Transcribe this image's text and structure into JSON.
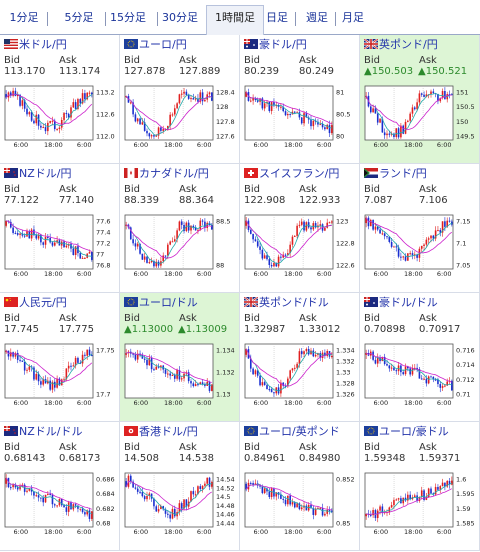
{
  "tabs": [
    {
      "label": "1分足",
      "active": false
    },
    {
      "label": "5分足",
      "active": false
    },
    {
      "label": "15分足",
      "active": false
    },
    {
      "label": "30分足",
      "active": false
    },
    {
      "label": "1時間足",
      "active": true
    },
    {
      "label": "日足",
      "active": false
    },
    {
      "label": "週足",
      "active": false
    },
    {
      "label": "月足",
      "active": false
    }
  ],
  "labels": {
    "bid": "Bid",
    "ask": "Ask"
  },
  "x_ticks": [
    "6:00",
    "18:00",
    "6:00"
  ],
  "pairs": [
    {
      "name": "米ドル/円",
      "flag": "us",
      "bid": "113.170",
      "ask": "113.174",
      "trend": "",
      "highlight": false,
      "y_ticks": [
        "113.2",
        "112.6",
        "112.0"
      ],
      "seed": 3,
      "shape": "dipmid"
    },
    {
      "name": "ユーロ/円",
      "flag": "eu",
      "bid": "127.878",
      "ask": "127.889",
      "trend": "",
      "highlight": false,
      "y_ticks": [
        "128.4",
        "128",
        "127.8",
        "127.6"
      ],
      "seed": 7,
      "shape": "vshape"
    },
    {
      "name": "豪ドル/円",
      "flag": "au",
      "bid": "80.239",
      "ask": "80.249",
      "trend": "",
      "highlight": false,
      "y_ticks": [
        "81",
        "80.5",
        "80"
      ],
      "seed": 11,
      "shape": "down"
    },
    {
      "name": "英ポンド/円",
      "flag": "gb",
      "bid": "150.503",
      "ask": "150.521",
      "trend": "up",
      "highlight": true,
      "y_ticks": [
        "151",
        "150.5",
        "150",
        "149.5"
      ],
      "seed": 13,
      "shape": "vshape"
    },
    {
      "name": "NZドル/円",
      "flag": "nz",
      "bid": "77.122",
      "ask": "77.140",
      "trend": "",
      "highlight": false,
      "y_ticks": [
        "77.6",
        "77.4",
        "77.2",
        "77",
        "76.8"
      ],
      "seed": 17,
      "shape": "down"
    },
    {
      "name": "カナダドル/円",
      "flag": "ca",
      "bid": "88.339",
      "ask": "88.364",
      "trend": "",
      "highlight": false,
      "y_ticks": [
        "88.5",
        "88"
      ],
      "seed": 19,
      "shape": "vshape"
    },
    {
      "name": "スイスフラン/円",
      "flag": "ch",
      "bid": "122.908",
      "ask": "122.933",
      "trend": "",
      "highlight": false,
      "y_ticks": [
        "123",
        "122.8",
        "122.6"
      ],
      "seed": 23,
      "shape": "vshape"
    },
    {
      "name": "ランド/円",
      "flag": "za",
      "bid": "7.087",
      "ask": "7.106",
      "trend": "",
      "highlight": false,
      "y_ticks": [
        "7.15",
        "7.1",
        "7.05"
      ],
      "seed": 29,
      "shape": "dipmid"
    },
    {
      "name": "人民元/円",
      "flag": "cn",
      "bid": "17.745",
      "ask": "17.775",
      "trend": "",
      "highlight": false,
      "y_ticks": [
        "17.75",
        "17.7"
      ],
      "seed": 31,
      "shape": "dipmid"
    },
    {
      "name": "ユーロ/ドル",
      "flag": "eu",
      "bid": "1.13000",
      "ask": "1.13009",
      "trend": "up",
      "highlight": true,
      "y_ticks": [
        "1.134",
        "1.132",
        "1.13"
      ],
      "seed": 37,
      "shape": "down"
    },
    {
      "name": "英ポンド/ドル",
      "flag": "gb",
      "bid": "1.32987",
      "ask": "1.33012",
      "trend": "",
      "highlight": false,
      "y_ticks": [
        "1.334",
        "1.332",
        "1.33",
        "1.328",
        "1.326"
      ],
      "seed": 41,
      "shape": "vshape"
    },
    {
      "name": "豪ドル/ドル",
      "flag": "au",
      "bid": "0.70898",
      "ask": "0.70917",
      "trend": "",
      "highlight": false,
      "y_ticks": [
        "0.716",
        "0.714",
        "0.712",
        "0.71"
      ],
      "seed": 43,
      "shape": "down"
    },
    {
      "name": "NZドル/ドル",
      "flag": "nz",
      "bid": "0.68143",
      "ask": "0.68173",
      "trend": "",
      "highlight": false,
      "y_ticks": [
        "0.686",
        "0.684",
        "0.682",
        "0.68"
      ],
      "seed": 47,
      "shape": "down"
    },
    {
      "name": "香港ドル/円",
      "flag": "hk",
      "bid": "14.508",
      "ask": "14.538",
      "trend": "",
      "highlight": false,
      "y_ticks": [
        "14.54",
        "14.52",
        "14.5",
        "14.48",
        "14.46",
        "14.44"
      ],
      "seed": 53,
      "shape": "dipmid"
    },
    {
      "name": "ユーロ/英ポンド",
      "flag": "eu",
      "bid": "0.84961",
      "ask": "0.84980",
      "trend": "",
      "highlight": false,
      "y_ticks": [
        "0.852",
        "0.85"
      ],
      "seed": 59,
      "shape": "down"
    },
    {
      "name": "ユーロ/豪ドル",
      "flag": "eu",
      "bid": "1.59348",
      "ask": "1.59371",
      "trend": "",
      "highlight": false,
      "y_ticks": [
        "1.6",
        "1.595",
        "1.59",
        "1.585"
      ],
      "seed": 61,
      "shape": "up"
    }
  ],
  "colors": {
    "up_candle": "#e02020",
    "down_candle": "#1a2fd0",
    "ma_line": "#cc22cc",
    "ma2_line": "#22aaaa",
    "link": "#2233aa"
  }
}
